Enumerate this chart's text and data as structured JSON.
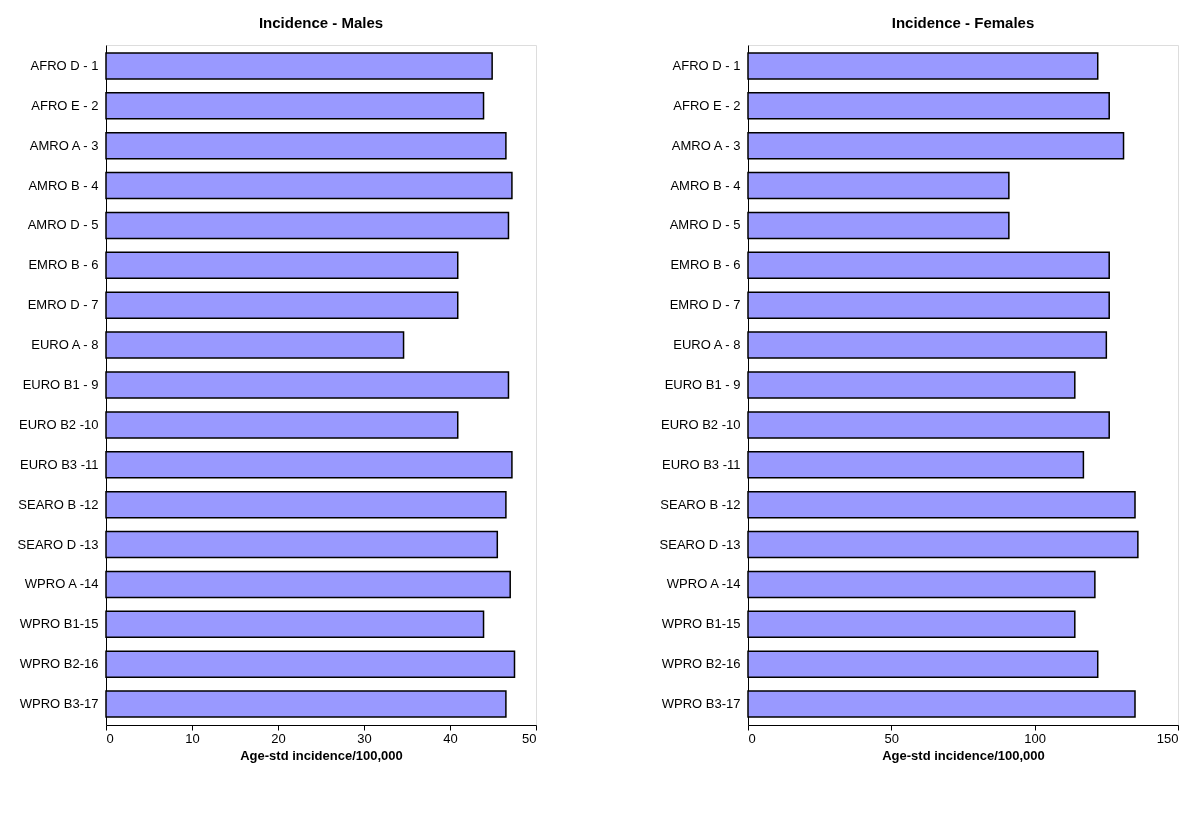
{
  "chart_data": [
    {
      "type": "bar",
      "orientation": "horizontal",
      "title": "Incidence - Males",
      "xlabel": "Age-std incidence/100,000",
      "categories": [
        "AFRO D  -  1",
        "AFRO E  -  2",
        "AMRO A  -  3",
        "AMRO B  -  4",
        "AMRO D  -  5",
        "EMRO B  -  6",
        "EMRO D  -  7",
        "EURO A   -  8",
        "EURO B1 -  9",
        "EURO B2 -10",
        "EURO B3 -11",
        "SEARO B -12",
        "SEARO D -13",
        "WPRO A   -14",
        "WPRO B1-15",
        "WPRO B2-16",
        "WPRO B3-17"
      ],
      "values": [
        44.9,
        43.9,
        46.5,
        47.2,
        46.8,
        40.9,
        40.9,
        34.6,
        46.8,
        40.9,
        47.2,
        46.5,
        45.5,
        47.0,
        43.9,
        47.5,
        46.5
      ],
      "color": "#9999ff",
      "xlim": [
        0,
        50
      ],
      "xticks": [
        0,
        10,
        20,
        30,
        40,
        50
      ],
      "grid": false
    },
    {
      "type": "bar",
      "orientation": "horizontal",
      "title": "Incidence - Females",
      "xlabel": "Age-std incidence/100,000",
      "categories": [
        "AFRO D  -  1",
        "AFRO E  -  2",
        "AMRO A  -  3",
        "AMRO B  -  4",
        "AMRO D  -  5",
        "EMRO B  -  6",
        "EMRO D  -  7",
        "EURO A   -  8",
        "EURO B1 -  9",
        "EURO B2 -10",
        "EURO B3 -11",
        "SEARO B -12",
        "SEARO D -13",
        "WPRO A   -14",
        "WPRO B1-15",
        "WPRO B2-16",
        "WPRO B3-17"
      ],
      "values": [
        122,
        126,
        131,
        91,
        91,
        126,
        126,
        125,
        114,
        126,
        117,
        135,
        136,
        121,
        114,
        122,
        135
      ],
      "color": "#9999ff",
      "xlim": [
        0,
        150
      ],
      "xticks": [
        0,
        50,
        100,
        150
      ],
      "grid": false
    }
  ]
}
